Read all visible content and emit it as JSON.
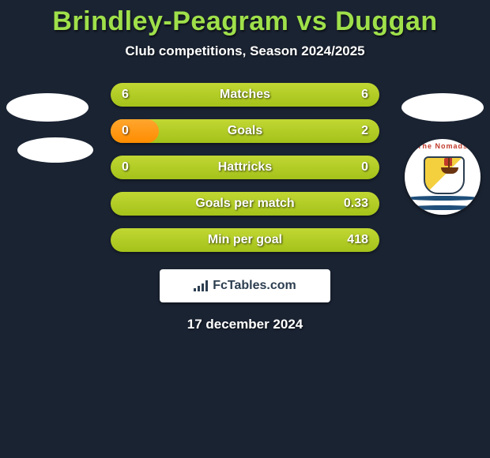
{
  "title": "Brindley-Peagram vs Duggan",
  "subtitle": "Club competitions, Season 2024/2025",
  "date": "17 december 2024",
  "logo_text": "FcTables.com",
  "colors": {
    "background": "#1a2332",
    "title": "#9fe04a",
    "bar_base_top": "#c2d733",
    "bar_base_bottom": "#a4c21a",
    "bar_fill_top": "#ffa62e",
    "bar_fill_bottom": "#ff8c00",
    "text": "#ffffff"
  },
  "crest": {
    "arc_text": "The Nomads",
    "arc_color": "#c0392b",
    "wave_color": "#1f4e79"
  },
  "rows": [
    {
      "label": "Matches",
      "left": "6",
      "right": "6",
      "fill_left_pct": 50,
      "fill_width_pct": 0
    },
    {
      "label": "Goals",
      "left": "0",
      "right": "2",
      "fill_left_pct": 0,
      "fill_width_pct": 18
    },
    {
      "label": "Hattricks",
      "left": "0",
      "right": "0",
      "fill_left_pct": 0,
      "fill_width_pct": 0
    },
    {
      "label": "Goals per match",
      "left": "",
      "right": "0.33",
      "fill_left_pct": 0,
      "fill_width_pct": 0
    },
    {
      "label": "Min per goal",
      "left": "",
      "right": "418",
      "fill_left_pct": 0,
      "fill_width_pct": 0
    }
  ]
}
